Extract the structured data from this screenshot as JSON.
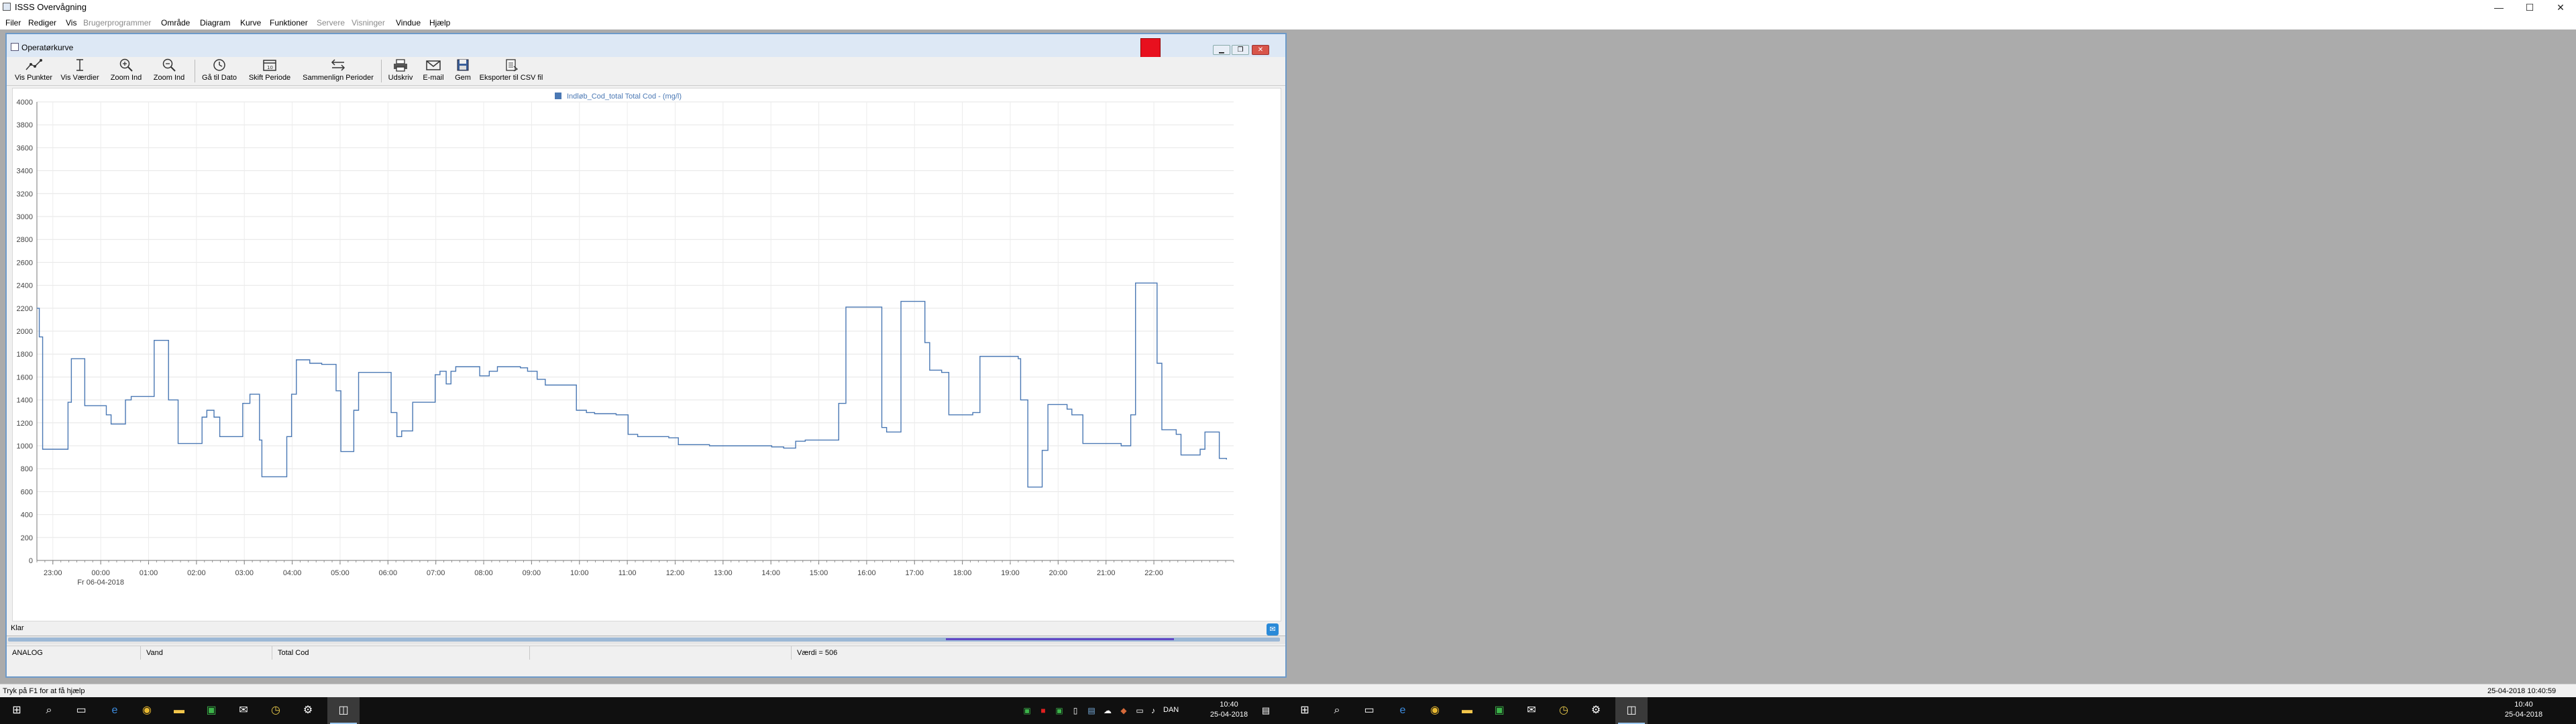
{
  "app": {
    "title": "ISSS Overvågning"
  },
  "window_controls": {
    "minimize": "—",
    "maximize": "☐",
    "close": "✕"
  },
  "menu": [
    {
      "label": "Filer",
      "enabled": true
    },
    {
      "label": "Rediger",
      "enabled": true
    },
    {
      "label": "Vis",
      "enabled": true
    },
    {
      "label": "Brugerprogrammer",
      "enabled": false
    },
    {
      "label": "Område",
      "enabled": true
    },
    {
      "label": "Diagram",
      "enabled": true
    },
    {
      "label": "Kurve",
      "enabled": true
    },
    {
      "label": "Funktioner",
      "enabled": true
    },
    {
      "label": "Servere",
      "enabled": false
    },
    {
      "label": "Visninger",
      "enabled": false
    },
    {
      "label": "Vindue",
      "enabled": true
    },
    {
      "label": "Hjælp",
      "enabled": true
    }
  ],
  "child_window": {
    "title": "Operatørkurve",
    "controls": {
      "minimize": "▁",
      "restore": "❐",
      "close": "✕"
    },
    "alert_color": "#e8101e"
  },
  "toolbar": [
    {
      "label": "Vis Punkter",
      "icon": "points-icon"
    },
    {
      "label": "Vis Værdier",
      "icon": "values-icon"
    },
    {
      "label": "Zoom Ind",
      "icon": "zoom-in-icon"
    },
    {
      "label": "Zoom Ind",
      "icon": "zoom-in-2-icon"
    },
    {
      "label": "Gå til Dato",
      "icon": "clock-icon"
    },
    {
      "label": "Skift Periode",
      "icon": "calendar-icon"
    },
    {
      "label": "Sammenlign Perioder",
      "icon": "compare-icon"
    },
    {
      "label": "Udskriv",
      "icon": "printer-icon"
    },
    {
      "label": "E-mail",
      "icon": "email-icon"
    },
    {
      "label": "Gem",
      "icon": "save-icon"
    },
    {
      "label": "Eksporter til CSV fil",
      "icon": "csv-export-icon"
    }
  ],
  "chart_data": {
    "type": "line",
    "step": true,
    "title": "",
    "legend": {
      "entries": [
        "Indløb_Cod_total Total Cod - (mg/l)"
      ],
      "placement": "top-center"
    },
    "series": [
      {
        "name": "Indløb_Cod_total Total Cod - (mg/l)",
        "color": "#4a78b4",
        "points": [
          [
            0.0,
            2200
          ],
          [
            0.05,
            1950
          ],
          [
            0.12,
            970
          ],
          [
            0.65,
            1380
          ],
          [
            0.72,
            1760
          ],
          [
            1.0,
            1350
          ],
          [
            1.45,
            1270
          ],
          [
            1.55,
            1190
          ],
          [
            1.85,
            1400
          ],
          [
            1.97,
            1430
          ],
          [
            2.45,
            1920
          ],
          [
            2.75,
            1400
          ],
          [
            2.95,
            1020
          ],
          [
            3.45,
            1250
          ],
          [
            3.55,
            1310
          ],
          [
            3.7,
            1250
          ],
          [
            3.82,
            1080
          ],
          [
            4.3,
            1370
          ],
          [
            4.45,
            1450
          ],
          [
            4.65,
            1050
          ],
          [
            4.7,
            730
          ],
          [
            5.22,
            1080
          ],
          [
            5.32,
            1450
          ],
          [
            5.42,
            1750
          ],
          [
            5.7,
            1720
          ],
          [
            5.95,
            1710
          ],
          [
            6.25,
            1480
          ],
          [
            6.35,
            950
          ],
          [
            6.62,
            1310
          ],
          [
            6.72,
            1640
          ],
          [
            7.4,
            1290
          ],
          [
            7.52,
            1080
          ],
          [
            7.62,
            1130
          ],
          [
            7.85,
            1380
          ],
          [
            8.32,
            1620
          ],
          [
            8.42,
            1650
          ],
          [
            8.55,
            1540
          ],
          [
            8.65,
            1650
          ],
          [
            8.75,
            1690
          ],
          [
            9.25,
            1610
          ],
          [
            9.45,
            1650
          ],
          [
            9.62,
            1690
          ],
          [
            10.1,
            1680
          ],
          [
            10.25,
            1650
          ],
          [
            10.45,
            1580
          ],
          [
            10.62,
            1530
          ],
          [
            11.27,
            1310
          ],
          [
            11.48,
            1290
          ],
          [
            11.65,
            1280
          ],
          [
            12.1,
            1270
          ],
          [
            12.35,
            1100
          ],
          [
            12.55,
            1080
          ],
          [
            13.2,
            1070
          ],
          [
            13.4,
            1010
          ],
          [
            14.05,
            1000
          ],
          [
            14.55,
            1000
          ],
          [
            15.35,
            990
          ],
          [
            15.6,
            980
          ],
          [
            15.85,
            1040
          ],
          [
            16.05,
            1050
          ],
          [
            16.75,
            1370
          ],
          [
            16.9,
            2210
          ],
          [
            17.65,
            1160
          ],
          [
            17.75,
            1120
          ],
          [
            18.05,
            2260
          ],
          [
            18.55,
            1900
          ],
          [
            18.65,
            1660
          ],
          [
            18.9,
            1640
          ],
          [
            19.05,
            1270
          ],
          [
            19.55,
            1290
          ],
          [
            19.7,
            1780
          ],
          [
            20.5,
            1760
          ],
          [
            20.55,
            1400
          ],
          [
            20.7,
            640
          ],
          [
            21.0,
            960
          ],
          [
            21.12,
            1360
          ],
          [
            21.52,
            1320
          ],
          [
            21.62,
            1270
          ],
          [
            21.85,
            1020
          ],
          [
            22.65,
            1000
          ],
          [
            22.85,
            1270
          ],
          [
            22.95,
            2420
          ],
          [
            23.4,
            1720
          ],
          [
            23.5,
            1140
          ],
          [
            23.8,
            1100
          ],
          [
            23.9,
            920
          ],
          [
            24.3,
            970
          ],
          [
            24.4,
            1120
          ],
          [
            24.7,
            890
          ],
          [
            24.85,
            880
          ]
        ]
      }
    ],
    "x_axis": {
      "type": "time",
      "range": [
        "2018-04-05 22:40",
        "2018-04-06 22:40"
      ],
      "tick_labels": [
        "23:00",
        "00:00",
        "01:00",
        "02:00",
        "03:00",
        "04:00",
        "05:00",
        "06:00",
        "07:00",
        "08:00",
        "09:00",
        "10:00",
        "11:00",
        "12:00",
        "13:00",
        "14:00",
        "15:00",
        "16:00",
        "17:00",
        "18:00",
        "19:00",
        "20:00",
        "21:00",
        "22:00"
      ],
      "date_label": "Fr 06-04-2018"
    },
    "y_axis": {
      "range": [
        0,
        4000
      ],
      "ticks": [
        "0",
        "200",
        "400",
        "600",
        "800",
        "1000",
        "1200",
        "1400",
        "1600",
        "1800",
        "2000",
        "2200",
        "2400",
        "2600",
        "2800",
        "3000",
        "3200",
        "3400",
        "3600",
        "3800",
        "4000"
      ]
    },
    "grid": true
  },
  "status": {
    "ready": "Klar",
    "cells": [
      "ANALOG",
      "Vand",
      "Total Cod",
      "",
      "Værdi = 506"
    ]
  },
  "app_status": {
    "hint": "Tryk på F1 for at få hjælp",
    "datetime": "25-04-2018  10:40:59"
  },
  "taskbar": {
    "left": {
      "time": "10:40",
      "date": "25-04-2018",
      "lang": "DAN"
    },
    "right": {
      "time": "10:40",
      "date": "25-04-2018"
    }
  }
}
